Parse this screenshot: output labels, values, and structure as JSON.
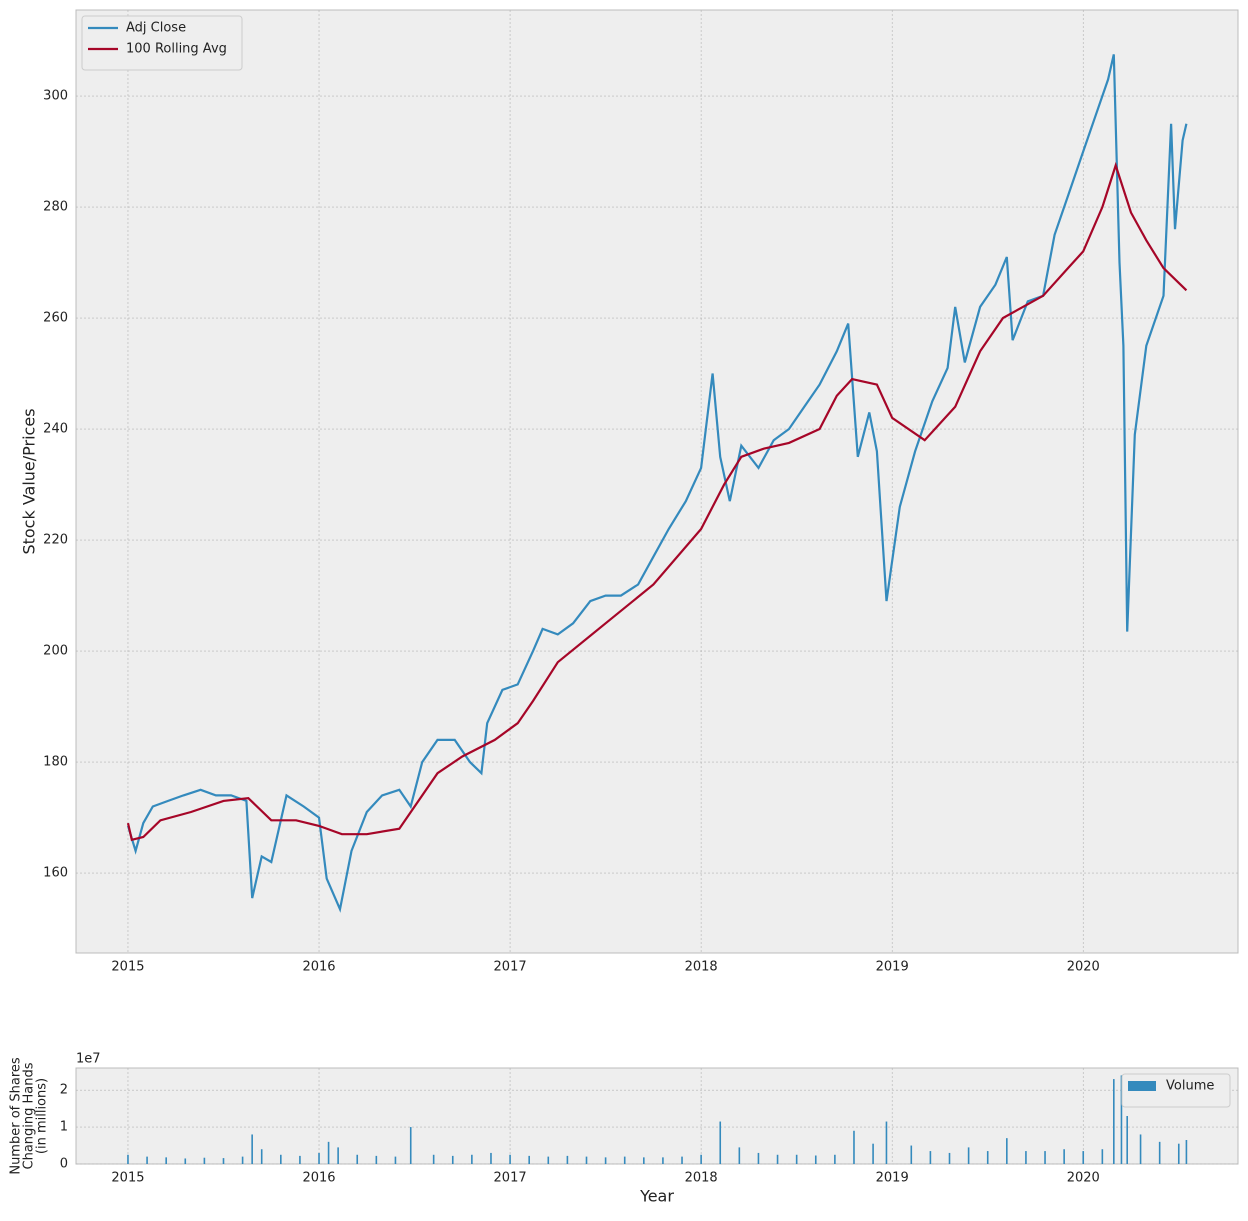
{
  "chart_data": [
    {
      "type": "line",
      "ylabel": "Stock Value/Prices",
      "grid": true,
      "legend": "upper left",
      "xlim": [
        2014.728,
        2020.81
      ],
      "ylim": [
        145.6,
        315.5
      ],
      "xticks": [
        2015,
        2016,
        2017,
        2018,
        2019,
        2020
      ],
      "yticks": [
        160,
        180,
        200,
        220,
        240,
        260,
        280,
        300
      ],
      "series": [
        {
          "name": "Adj Close",
          "color": "#348ABD",
          "x": [
            2015.0,
            2015.04,
            2015.08,
            2015.13,
            2015.21,
            2015.29,
            2015.38,
            2015.46,
            2015.54,
            2015.62,
            2015.65,
            2015.7,
            2015.75,
            2015.79,
            2015.83,
            2015.92,
            2016.0,
            2016.04,
            2016.11,
            2016.17,
            2016.25,
            2016.33,
            2016.42,
            2016.48,
            2016.54,
            2016.62,
            2016.71,
            2016.79,
            2016.85,
            2016.88,
            2016.96,
            2017.04,
            2017.12,
            2017.17,
            2017.25,
            2017.33,
            2017.42,
            2017.5,
            2017.58,
            2017.67,
            2017.75,
            2017.83,
            2017.92,
            2018.0,
            2018.06,
            2018.1,
            2018.15,
            2018.21,
            2018.3,
            2018.38,
            2018.46,
            2018.54,
            2018.62,
            2018.71,
            2018.77,
            2018.82,
            2018.88,
            2018.92,
            2018.97,
            2019.04,
            2019.12,
            2019.21,
            2019.29,
            2019.33,
            2019.38,
            2019.46,
            2019.54,
            2019.6,
            2019.63,
            2019.71,
            2019.79,
            2019.85,
            2019.92,
            2020.0,
            2020.06,
            2020.13,
            2020.16,
            2020.19,
            2020.21,
            2020.23,
            2020.27,
            2020.33,
            2020.42,
            2020.46,
            2020.48,
            2020.52,
            2020.54
          ],
          "values": [
            168.5,
            164,
            169,
            172,
            173,
            174,
            175,
            174,
            174,
            173,
            155.5,
            163,
            162,
            168,
            174,
            172,
            170,
            159,
            153.5,
            164,
            171,
            174,
            175,
            172,
            180,
            184,
            184,
            180,
            178,
            187,
            193,
            194,
            200,
            204,
            203,
            205,
            209,
            210,
            210,
            212,
            217,
            222,
            227,
            233,
            250,
            235,
            227,
            237,
            233,
            238,
            240,
            244,
            248,
            254,
            259,
            235,
            243,
            236,
            209,
            226,
            236,
            245,
            251,
            262,
            252,
            262,
            266,
            271,
            256,
            263,
            264,
            275,
            282,
            290,
            296,
            303,
            307.5,
            270,
            255,
            203.5,
            239,
            255,
            264,
            295,
            276,
            292,
            295
          ]
        },
        {
          "name": "100 Rolling Avg",
          "color": "#A60628",
          "x": [
            2015.0,
            2015.02,
            2015.08,
            2015.17,
            2015.33,
            2015.5,
            2015.63,
            2015.75,
            2015.88,
            2016.0,
            2016.12,
            2016.25,
            2016.42,
            2016.5,
            2016.62,
            2016.75,
            2016.92,
            2017.04,
            2017.12,
            2017.25,
            2017.5,
            2017.75,
            2018.0,
            2018.12,
            2018.21,
            2018.33,
            2018.46,
            2018.62,
            2018.71,
            2018.79,
            2018.92,
            2019.0,
            2019.17,
            2019.33,
            2019.46,
            2019.58,
            2019.79,
            2019.92,
            2020.0,
            2020.1,
            2020.17,
            2020.25,
            2020.33,
            2020.42,
            2020.54
          ],
          "values": [
            169,
            166,
            166.5,
            169.5,
            171,
            173,
            173.5,
            169.5,
            169.5,
            168.5,
            167,
            167,
            168,
            172,
            178,
            181,
            184,
            187,
            191,
            198,
            205,
            212,
            222,
            230,
            235,
            236.5,
            237.5,
            240,
            246,
            249,
            248,
            242,
            238,
            244,
            254,
            260,
            264,
            269,
            272,
            280,
            287.5,
            279,
            274,
            269,
            265
          ]
        }
      ]
    },
    {
      "type": "bar",
      "ylabel": [
        "Number of Shares",
        "Changing Hands",
        "(in millions)"
      ],
      "xlabel": "Year",
      "offset_text": "1e7",
      "grid": true,
      "legend": "upper right",
      "xlim": [
        2014.728,
        2020.81
      ],
      "ylim": [
        0,
        26000000
      ],
      "xticks": [
        2015,
        2016,
        2017,
        2018,
        2019,
        2020
      ],
      "yticks": [
        0,
        {
          "value": 10000000,
          "label": "1"
        },
        {
          "value": 20000000,
          "label": "2"
        }
      ],
      "series": [
        {
          "name": "Volume",
          "color": "#348ABD",
          "x": [
            2015.0,
            2015.1,
            2015.2,
            2015.3,
            2015.4,
            2015.5,
            2015.6,
            2015.65,
            2015.7,
            2015.8,
            2015.9,
            2016.0,
            2016.05,
            2016.1,
            2016.2,
            2016.3,
            2016.4,
            2016.48,
            2016.6,
            2016.7,
            2016.8,
            2016.9,
            2017.0,
            2017.1,
            2017.2,
            2017.3,
            2017.4,
            2017.5,
            2017.6,
            2017.7,
            2017.8,
            2017.9,
            2018.0,
            2018.1,
            2018.2,
            2018.3,
            2018.4,
            2018.5,
            2018.6,
            2018.7,
            2018.8,
            2018.9,
            2018.97,
            2019.1,
            2019.2,
            2019.3,
            2019.4,
            2019.5,
            2019.6,
            2019.7,
            2019.8,
            2019.9,
            2020.0,
            2020.1,
            2020.16,
            2020.2,
            2020.23,
            2020.3,
            2020.4,
            2020.5,
            2020.54
          ],
          "values": [
            2500000,
            2000000,
            1800000,
            1500000,
            1700000,
            1600000,
            2000000,
            8000000,
            4000000,
            2500000,
            2200000,
            3000000,
            6000000,
            4500000,
            2500000,
            2200000,
            2000000,
            10000000,
            2500000,
            2200000,
            2500000,
            3000000,
            2500000,
            2200000,
            2000000,
            2200000,
            2000000,
            1800000,
            2000000,
            1800000,
            1800000,
            2000000,
            2500000,
            11500000,
            4500000,
            3000000,
            2500000,
            2500000,
            2300000,
            2500000,
            9000000,
            5500000,
            11500000,
            5000000,
            3500000,
            3000000,
            4500000,
            3500000,
            7000000,
            3500000,
            3500000,
            4000000,
            3500000,
            4000000,
            23000000,
            24000000,
            13000000,
            8000000,
            6000000,
            5500000,
            6500000
          ]
        }
      ]
    }
  ]
}
